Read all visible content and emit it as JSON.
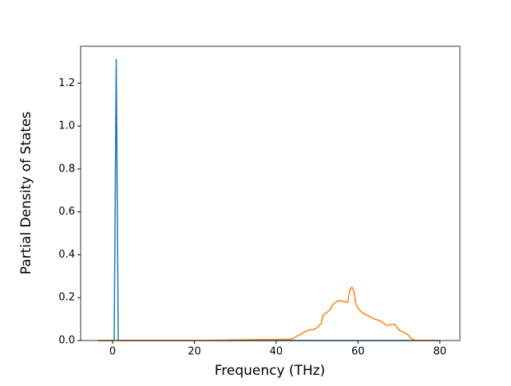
{
  "chart_data": {
    "type": "line",
    "xlabel": "Frequency (THz)",
    "ylabel": "Partial Density of States",
    "x": [
      -3.6,
      0,
      0.4,
      0.9,
      1.4,
      2,
      10,
      20,
      30,
      40,
      43,
      44,
      45,
      46,
      47,
      48,
      49,
      50,
      51,
      51.5,
      52,
      53,
      54,
      55,
      56,
      57,
      57.5,
      58,
      58.5,
      59,
      59.5,
      60,
      61,
      62,
      63,
      64,
      65,
      66,
      67,
      68,
      69,
      70,
      71,
      72,
      73,
      74,
      80
    ],
    "series": [
      {
        "color": "#1f77b4",
        "values": [
          0,
          0,
          0,
          1.31,
          0,
          0,
          0,
          0,
          0,
          0,
          0,
          0,
          0,
          0,
          0,
          0,
          0,
          0,
          0,
          0,
          0,
          0,
          0,
          0,
          0,
          0,
          0,
          0,
          0,
          0,
          0,
          0,
          0,
          0,
          0,
          0,
          0,
          0,
          0,
          0,
          0,
          0,
          0,
          0,
          0,
          0,
          0
        ]
      },
      {
        "color": "#ff7f0e",
        "values": [
          0,
          0,
          0,
          0,
          0,
          0,
          0,
          0,
          0.003,
          0.005,
          0.006,
          0.008,
          0.02,
          0.03,
          0.04,
          0.05,
          0.05,
          0.06,
          0.08,
          0.12,
          0.125,
          0.14,
          0.17,
          0.185,
          0.185,
          0.18,
          0.18,
          0.235,
          0.25,
          0.23,
          0.17,
          0.15,
          0.13,
          0.12,
          0.11,
          0.1,
          0.095,
          0.085,
          0.07,
          0.075,
          0.075,
          0.05,
          0.04,
          0.03,
          0.01,
          0,
          0
        ]
      }
    ],
    "xlim": [
      -7.8,
      84.9
    ],
    "xticks": [
      0,
      20,
      40,
      60,
      80
    ],
    "ylim": [
      0,
      1.372
    ],
    "yticks": [
      {
        "value": 0,
        "label": "0.0"
      },
      {
        "value": 0.2,
        "label": "0.2"
      },
      {
        "value": 0.4,
        "label": "0.4"
      },
      {
        "value": 0.6,
        "label": "0.6"
      },
      {
        "value": 0.8,
        "label": "0.8"
      },
      {
        "value": 1.0,
        "label": "1.0"
      },
      {
        "value": 1.2,
        "label": "1.2"
      }
    ]
  }
}
